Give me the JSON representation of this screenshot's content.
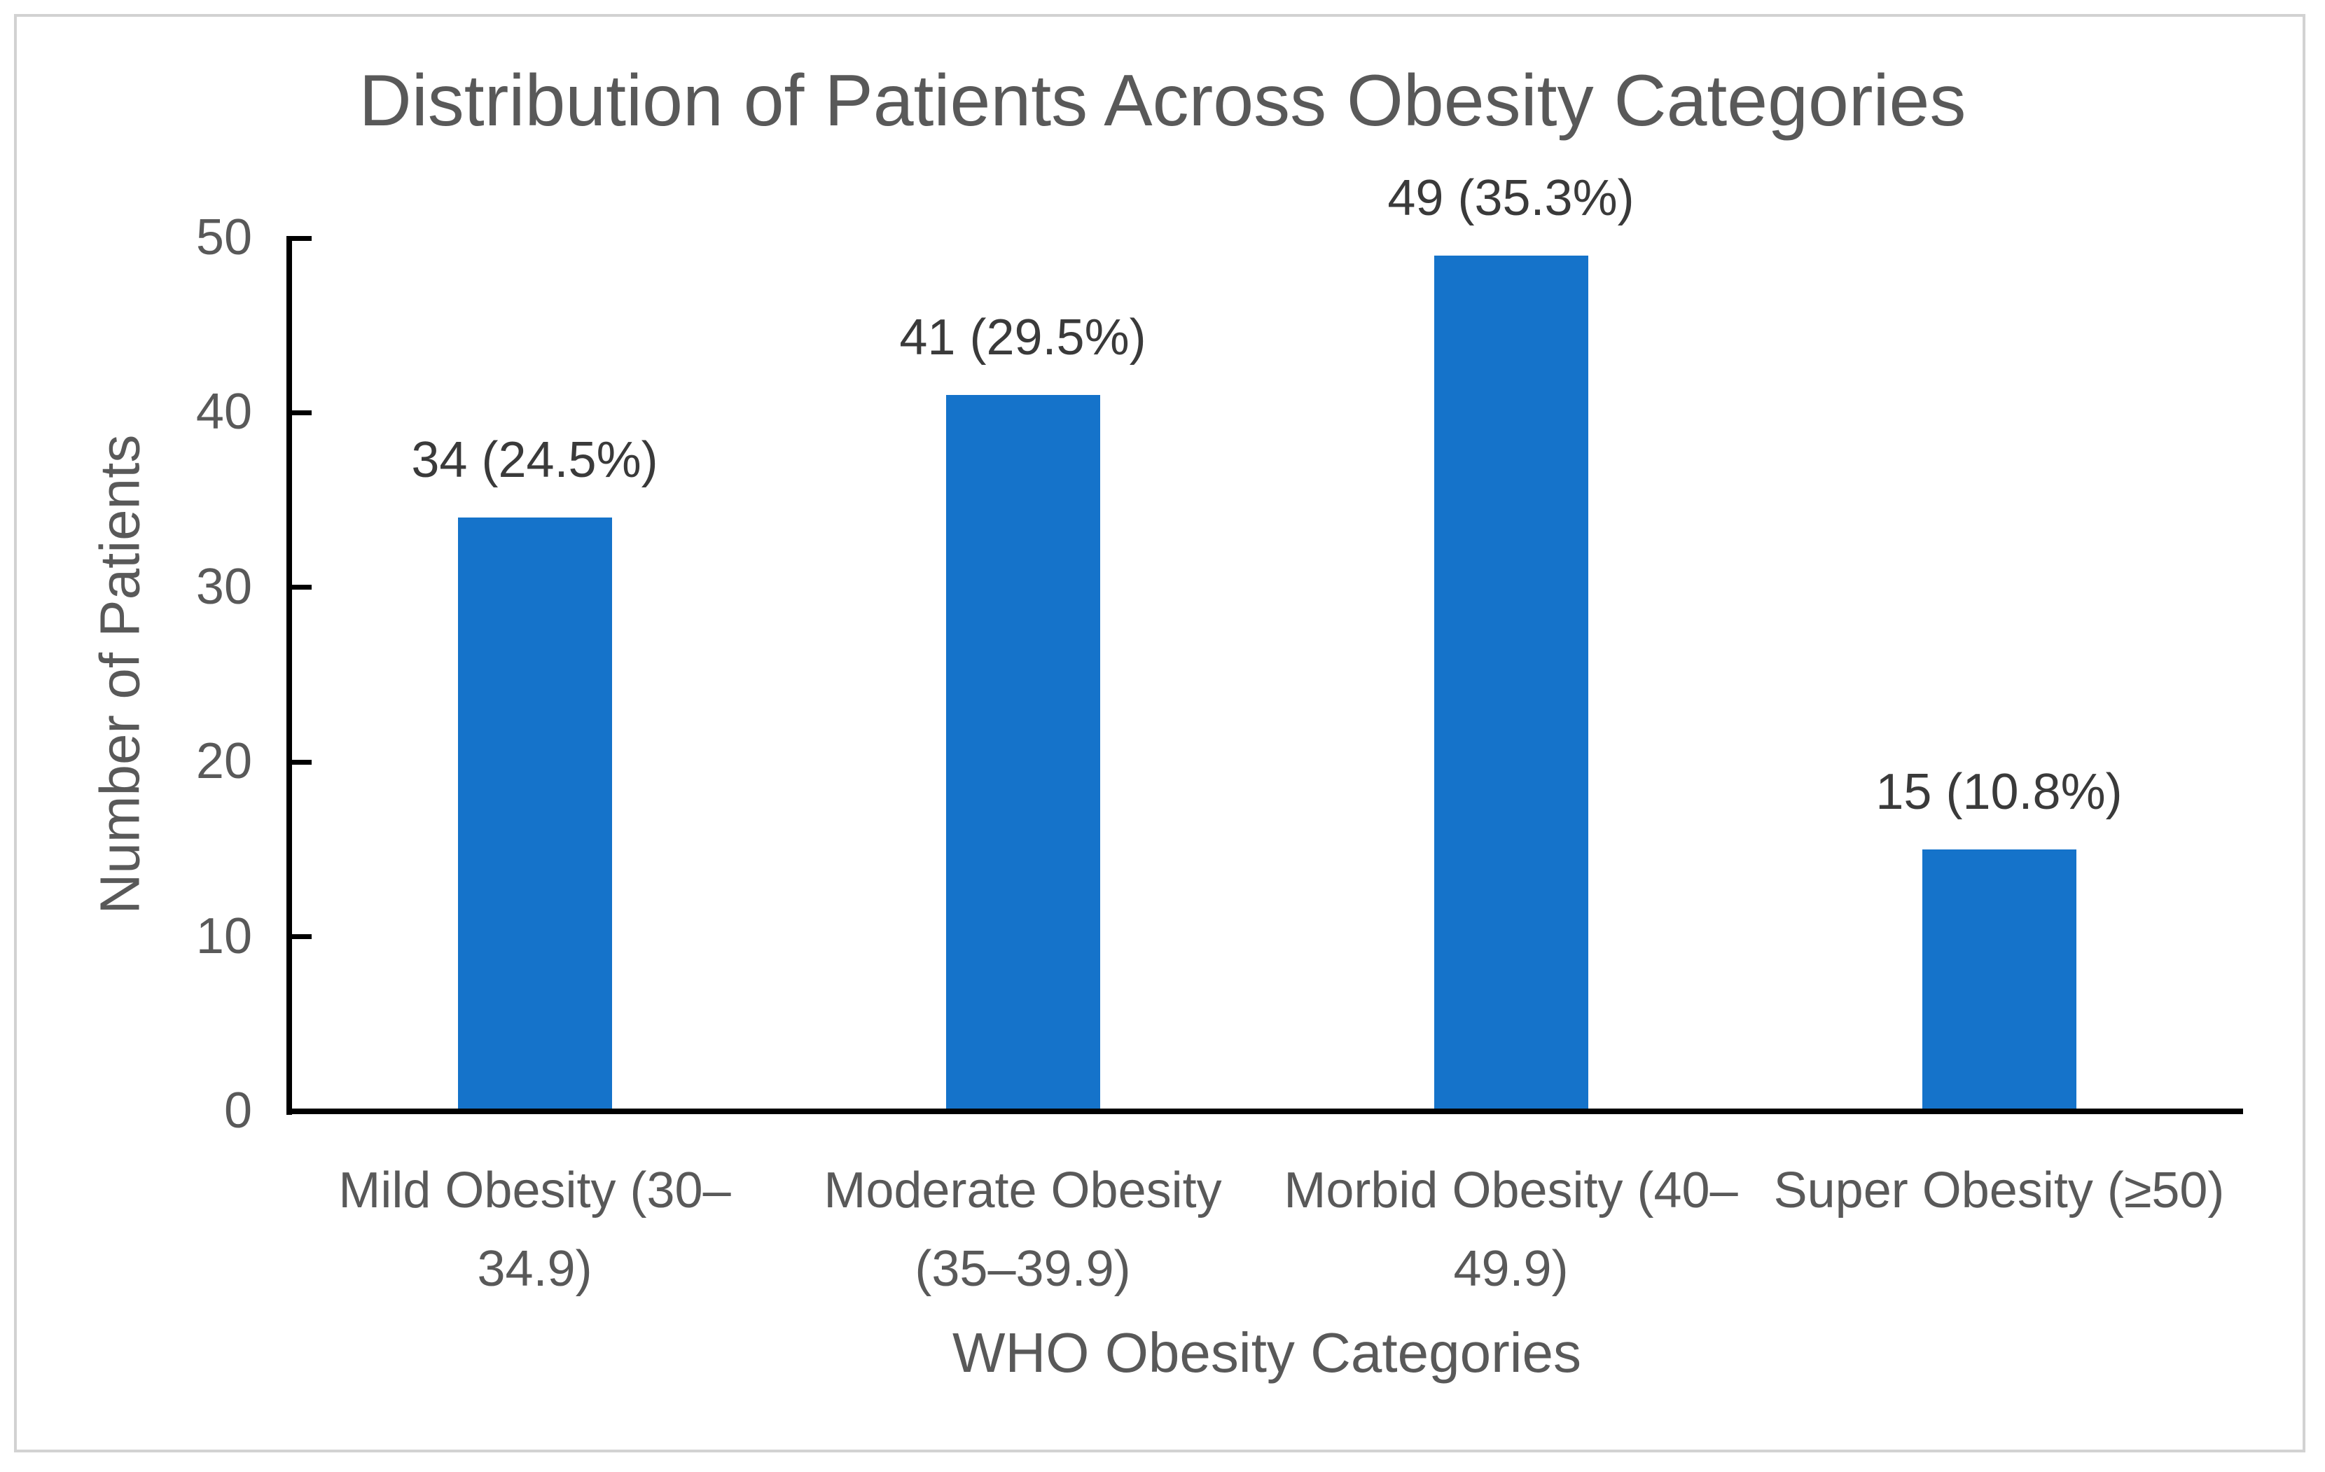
{
  "colors": {
    "bar": "#1573CA",
    "axis_line": "#000000",
    "title_text": "#595959",
    "axis_text": "#595959",
    "data_label_text": "#3a3a3a",
    "frame_border": "#d2d2d2",
    "background": "#ffffff"
  },
  "chart_data": {
    "type": "bar",
    "title": "Distribution of Patients Across Obesity Categories",
    "xlabel": "WHO Obesity Categories",
    "ylabel": "Number of Patients",
    "categories": [
      "Mild Obesity (30–34.9)",
      "Moderate Obesity (35–39.9)",
      "Morbid Obesity (40–49.9)",
      "Super Obesity (≥50)"
    ],
    "category_display": [
      "Mild Obesity (30–\n34.9)",
      "Moderate Obesity\n(35–39.9)",
      "Morbid Obesity (40–\n49.9)",
      "Super Obesity (≥50)"
    ],
    "values": [
      34,
      41,
      49,
      15
    ],
    "percentages": [
      24.5,
      29.5,
      35.3,
      10.8
    ],
    "data_labels": [
      "34 (24.5%)",
      "41 (29.5%)",
      "49 (35.3%)",
      "15 (10.8%)"
    ],
    "ylim": [
      0,
      50
    ],
    "yticks": [
      0,
      10,
      20,
      30,
      40,
      50
    ],
    "grid": false,
    "legend": false,
    "bar_color": "#1573CA"
  }
}
